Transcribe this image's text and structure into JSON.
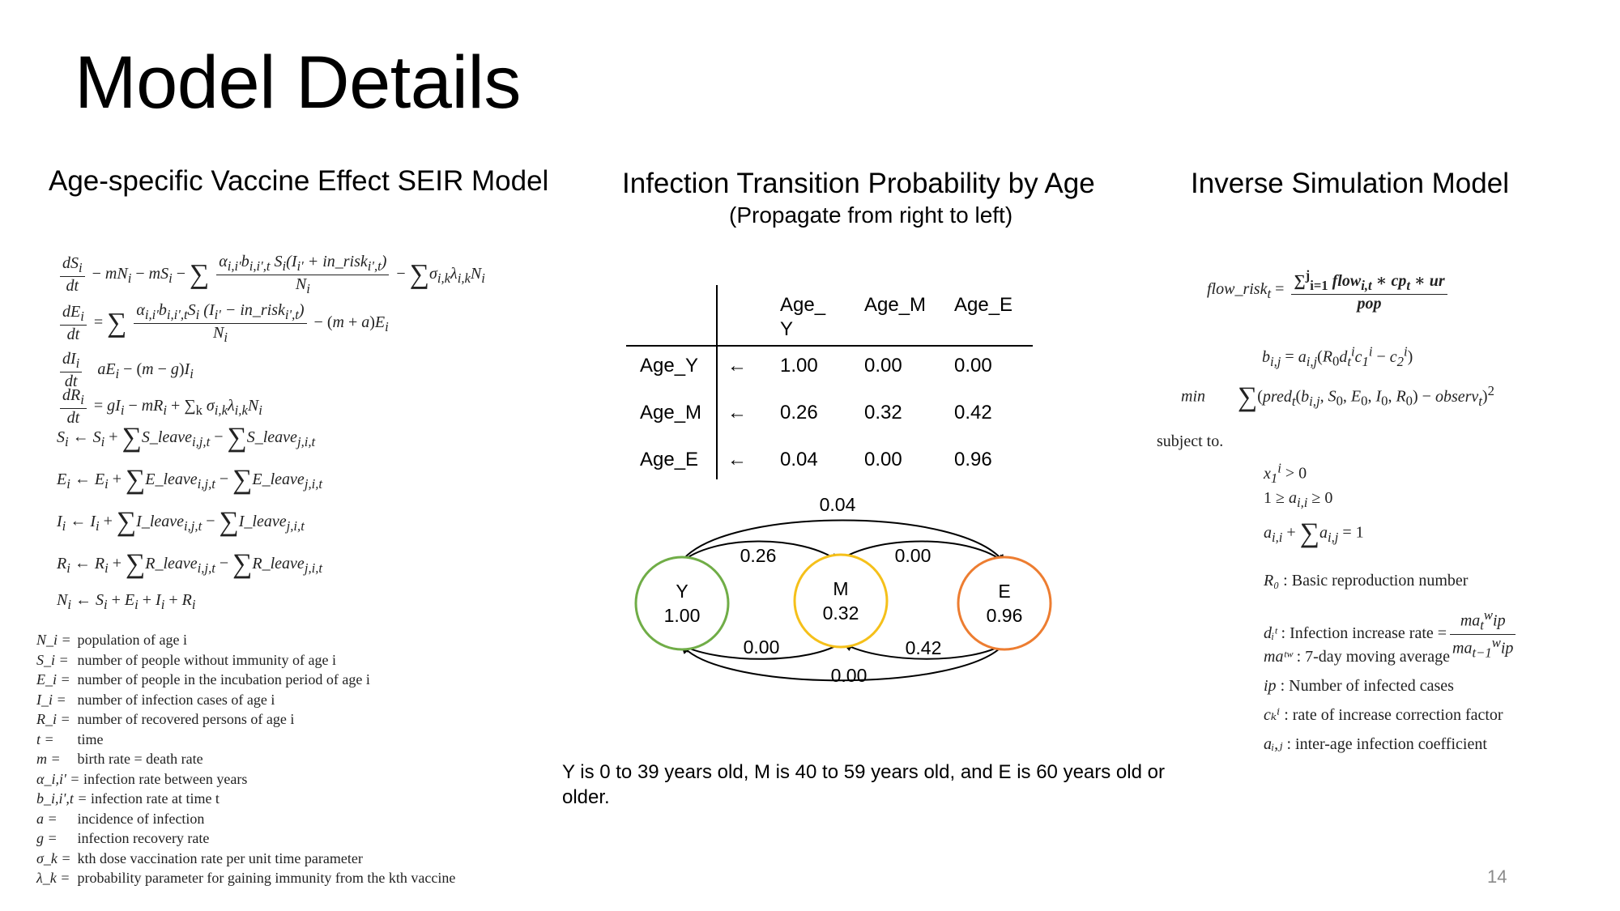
{
  "slide": {
    "title": "Model Details",
    "page_number": "14"
  },
  "left": {
    "heading": "Age-specific Vaccine Effect SEIR Model",
    "definitions": [
      {
        "symbol": "N_i =",
        "text": "population of age i"
      },
      {
        "symbol": "S_i =",
        "text": "number of people without immunity of age i"
      },
      {
        "symbol": "E_i =",
        "text": "number of people in the incubation period of age i"
      },
      {
        "symbol": "I_i =",
        "text": "number of infection cases of age i"
      },
      {
        "symbol": "R_i =",
        "text": "number of recovered persons of age i"
      },
      {
        "symbol": "t =",
        "text": "time"
      },
      {
        "symbol": "m =",
        "text": "birth rate = death rate"
      },
      {
        "symbol": "α_i,i' =",
        "text": "infection rate between years"
      },
      {
        "symbol": "b_i,i',t =",
        "text": "infection rate at time t"
      },
      {
        "symbol": "a =",
        "text": "incidence of infection"
      },
      {
        "symbol": "g =",
        "text": "infection recovery rate"
      },
      {
        "symbol": "σ_k =",
        "text": "kth dose vaccination rate per unit time parameter"
      },
      {
        "symbol": "λ_k =",
        "text": "probability parameter for gaining immunity from the kth vaccine"
      }
    ]
  },
  "middle": {
    "heading": "Infection Transition Probability by Age",
    "subheading": "(Propagate from right to left)",
    "table": {
      "columns": [
        "Age_\nY",
        "Age_M",
        "Age_E"
      ],
      "arrow": "←",
      "rows": [
        {
          "label": "Age_Y",
          "values": [
            "1.00",
            "0.00",
            "0.00"
          ]
        },
        {
          "label": "Age_M",
          "values": [
            "0.26",
            "0.32",
            "0.42"
          ]
        },
        {
          "label": "Age_E",
          "values": [
            "0.04",
            "0.00",
            "0.96"
          ]
        }
      ]
    },
    "diagram": {
      "nodes": [
        {
          "name": "Y",
          "value": "1.00",
          "color": "#70ad47"
        },
        {
          "name": "M",
          "value": "0.32",
          "color": "#f5c01a"
        },
        {
          "name": "E",
          "value": "0.96",
          "color": "#ed7d31"
        }
      ],
      "edge_labels": {
        "top_outer": "0.04",
        "top_left": "0.26",
        "top_right": "0.00",
        "bottom_left": "0.00",
        "bottom_right": "0.42",
        "bottom_outer": "0.00"
      }
    },
    "footnote": "Y is 0 to 39 years old, M is 40 to 59 years old, and E is 60 years old or older."
  },
  "right": {
    "heading": "Inverse Simulation Model",
    "subject_to": "subject to.",
    "min_label": "min",
    "definitions": [
      {
        "symbol": "R₀",
        "text": ": Basic reproduction number"
      },
      {
        "symbol": "dᵢᵗ",
        "text": ": Infection increase rate ="
      },
      {
        "symbol": "maᵗʷ",
        "text": ": 7-day moving average"
      },
      {
        "symbol": "ip",
        "text": ": Number of infected cases"
      },
      {
        "symbol": "cₖⁱ",
        "text": ": rate of increase correction factor"
      },
      {
        "symbol": "aᵢ,ⱼ",
        "text": ": inter-age infection coefficient"
      }
    ]
  }
}
